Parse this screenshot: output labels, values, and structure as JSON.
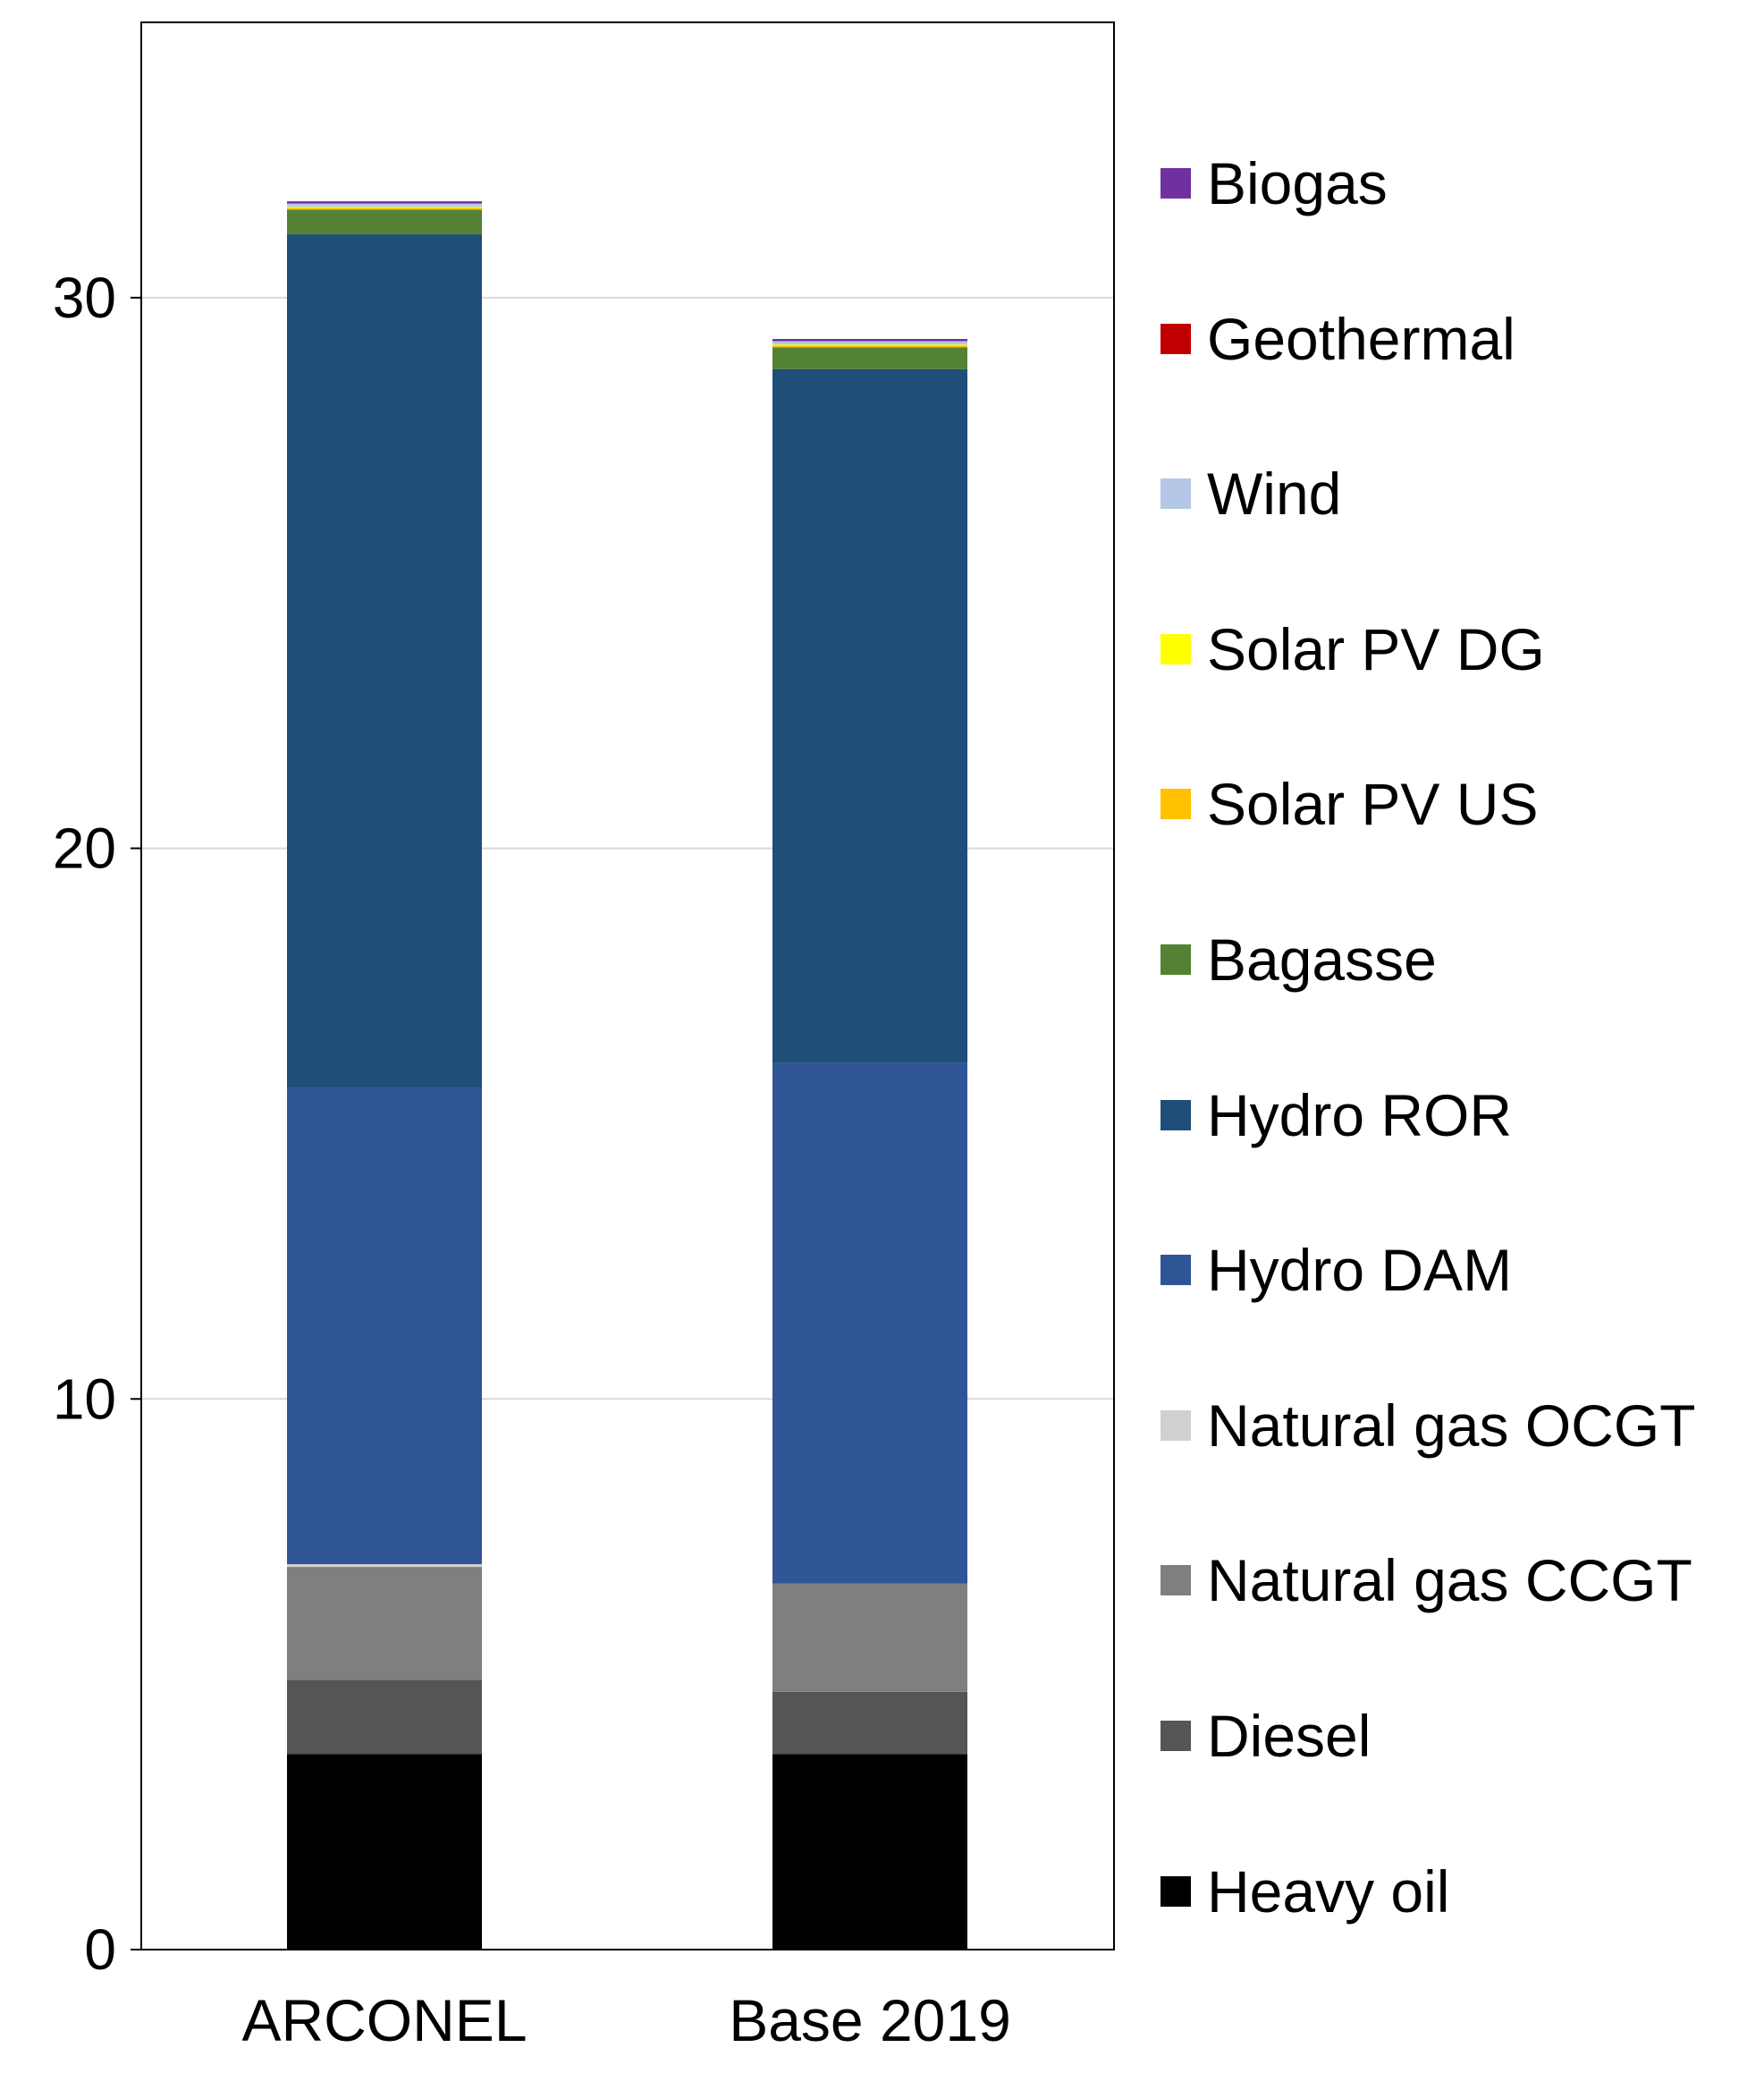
{
  "chart_data": {
    "type": "bar",
    "stacked": true,
    "title": "",
    "xlabel": "",
    "ylabel": "",
    "ylim": [
      0,
      35
    ],
    "yticks": [
      0,
      10,
      20,
      30
    ],
    "grid": true,
    "legend_position": "right",
    "categories": [
      "ARCONEL",
      "Base 2019"
    ],
    "series": [
      {
        "name": "Heavy oil",
        "color": "#000000",
        "values": [
          3.55,
          3.55
        ]
      },
      {
        "name": "Diesel",
        "color": "#555555",
        "values": [
          1.35,
          1.13
        ]
      },
      {
        "name": "Natural gas CCGT",
        "color": "#7f7f7f",
        "values": [
          2.05,
          1.97
        ]
      },
      {
        "name": "Natural gas OCGT",
        "color": "#d0d0d0",
        "values": [
          0.05,
          0.0
        ]
      },
      {
        "name": "Hydro DAM",
        "color": "#2f5597",
        "values": [
          8.65,
          9.45
        ]
      },
      {
        "name": "Hydro ROR",
        "color": "#1f4e79",
        "values": [
          15.5,
          12.6
        ]
      },
      {
        "name": "Bagasse",
        "color": "#548235",
        "values": [
          0.45,
          0.4
        ]
      },
      {
        "name": "Solar PV US",
        "color": "#ffc000",
        "values": [
          0.03,
          0.03
        ]
      },
      {
        "name": "Solar PV DG",
        "color": "#ffff00",
        "values": [
          0.02,
          0.02
        ]
      },
      {
        "name": "Wind",
        "color": "#b4c7e7",
        "values": [
          0.06,
          0.06
        ]
      },
      {
        "name": "Geothermal",
        "color": "#c00000",
        "values": [
          0.0,
          0.0
        ]
      },
      {
        "name": "Biogas",
        "color": "#7030a0",
        "values": [
          0.04,
          0.04
        ]
      }
    ],
    "legend_order": [
      "Biogas",
      "Geothermal",
      "Wind",
      "Solar PV DG",
      "Solar PV US",
      "Bagasse",
      "Hydro ROR",
      "Hydro DAM",
      "Natural gas OCGT",
      "Natural gas CCGT",
      "Diesel",
      "Heavy oil"
    ]
  }
}
